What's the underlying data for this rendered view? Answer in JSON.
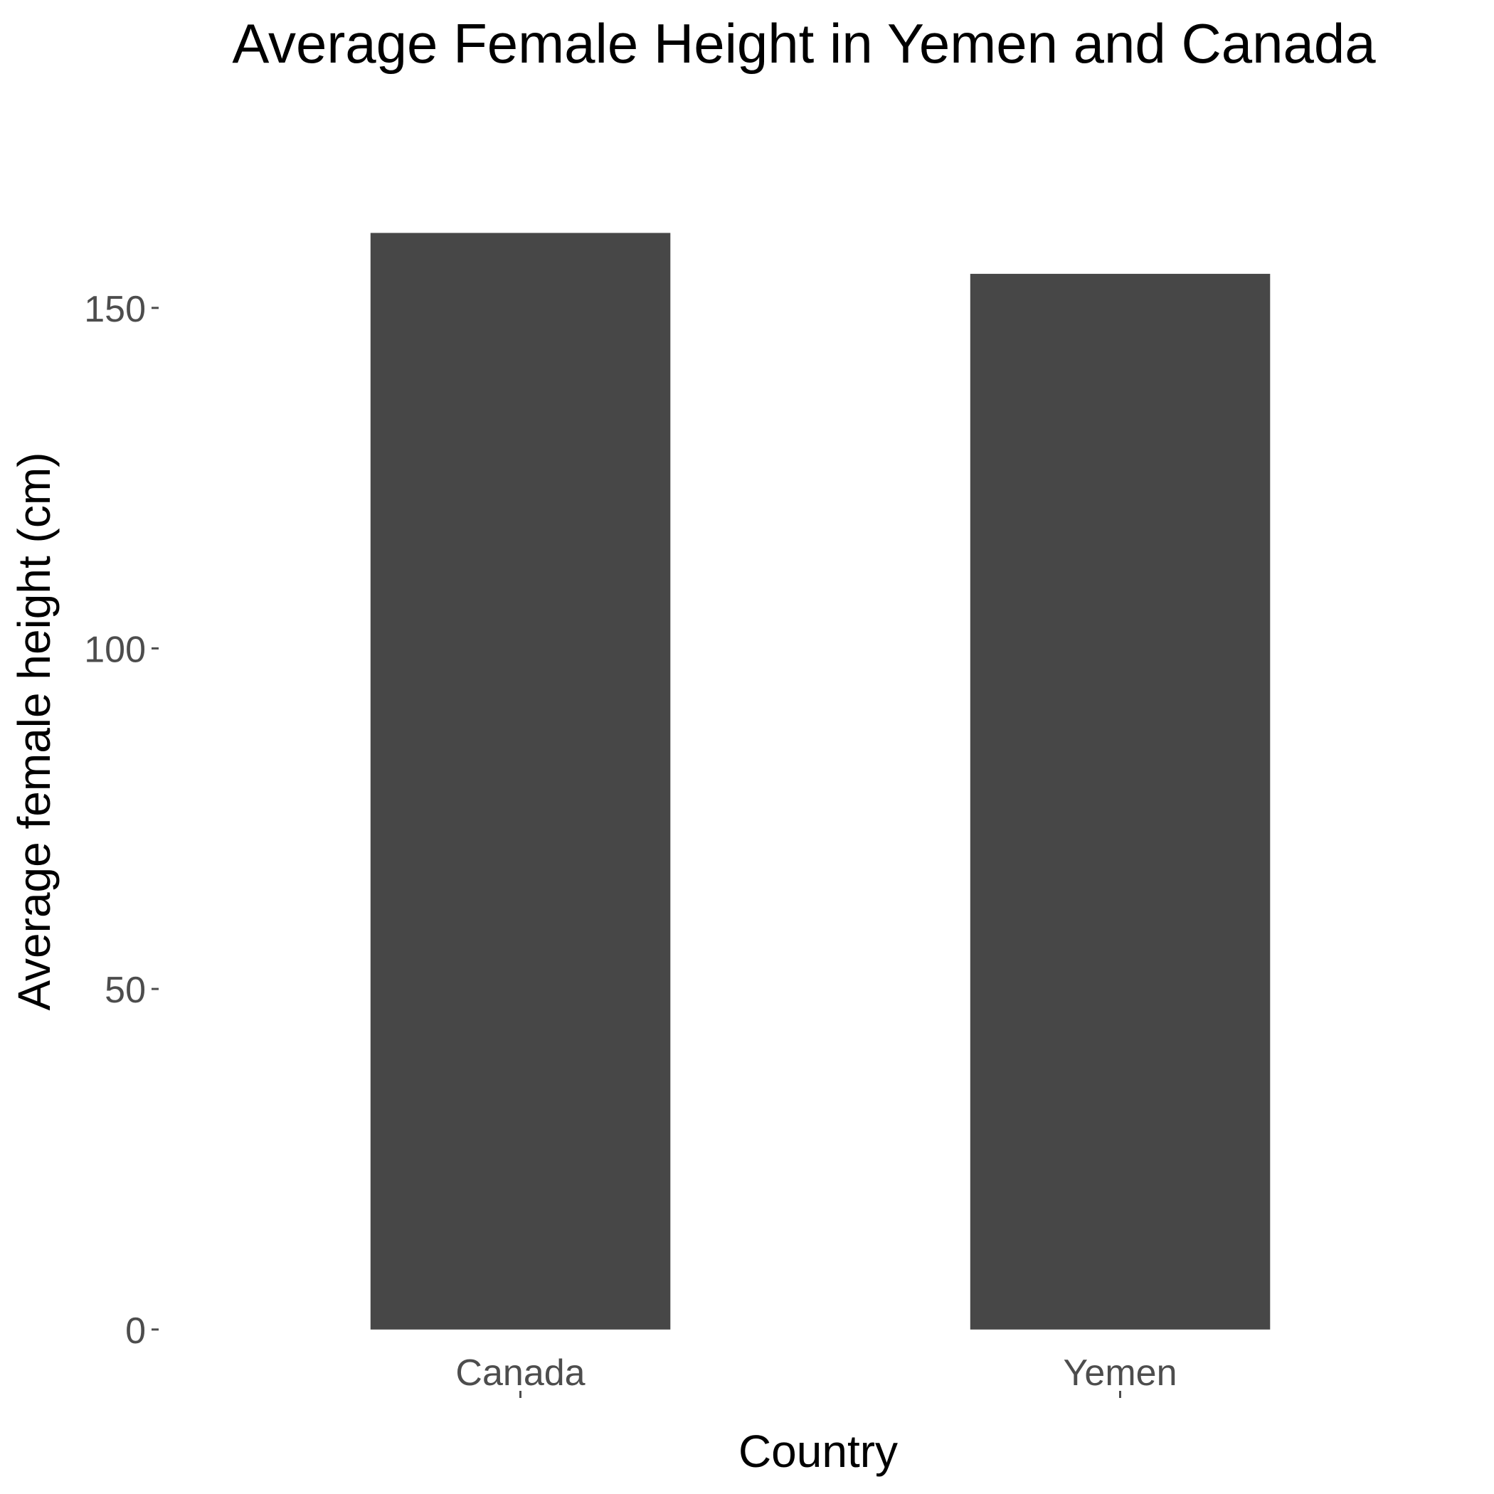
{
  "chart_data": {
    "type": "bar",
    "title": "Average Female Height in Yemen and Canada",
    "xlabel": "Country",
    "ylabel": "Average female height (cm)",
    "categories": [
      "Canada",
      "Yemen"
    ],
    "values": [
      161.0,
      155.0
    ],
    "ylim": [
      -9,
      167
    ],
    "yticks": [
      0,
      50,
      100,
      150
    ],
    "grid": false,
    "bar_color": "#474747",
    "background_color": "#ffffff"
  }
}
